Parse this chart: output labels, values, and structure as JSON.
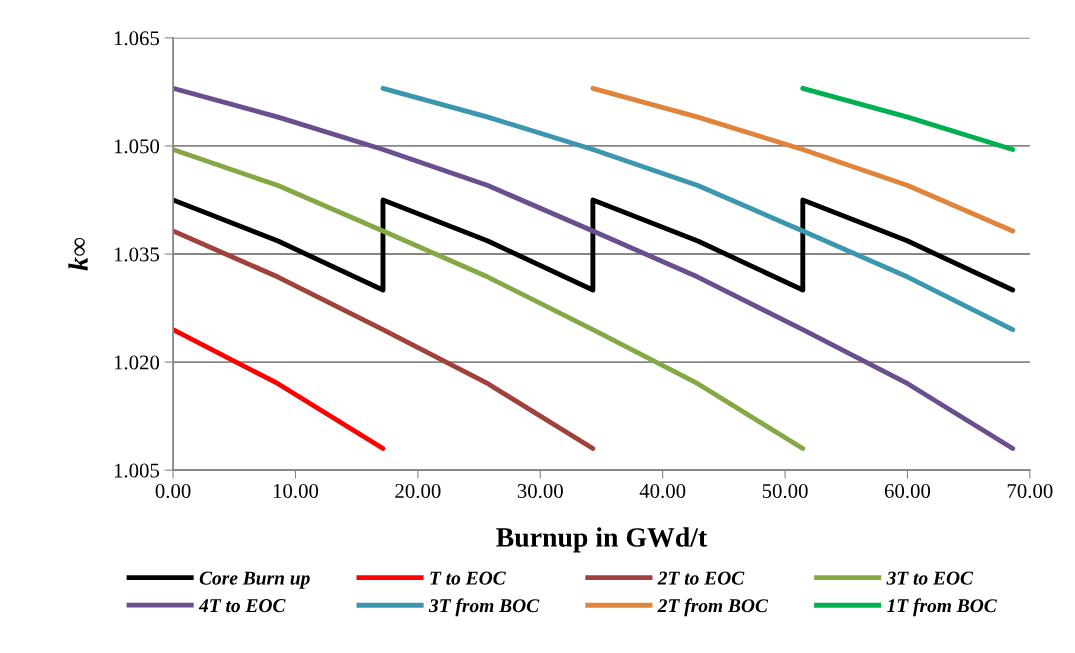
{
  "chart_data": {
    "type": "line",
    "xlabel": "Burnup in GWd/t",
    "ylabel": "k∞",
    "xlim": [
      0,
      70
    ],
    "ylim": [
      1.005,
      1.065
    ],
    "xticks": [
      {
        "value": 0,
        "label": "0.00"
      },
      {
        "value": 10,
        "label": "10.00"
      },
      {
        "value": 20,
        "label": "20.00"
      },
      {
        "value": 30,
        "label": "30.00"
      },
      {
        "value": 40,
        "label": "40.00"
      },
      {
        "value": 50,
        "label": "50.00"
      },
      {
        "value": 60,
        "label": "60.00"
      },
      {
        "value": 70,
        "label": "70.00"
      }
    ],
    "yticks": [
      {
        "value": 1.005,
        "label": "1.005"
      },
      {
        "value": 1.02,
        "label": "1.020"
      },
      {
        "value": 1.035,
        "label": "1.035"
      },
      {
        "value": 1.05,
        "label": "1.050"
      },
      {
        "value": 1.065,
        "label": "1.065"
      }
    ],
    "grid": "y",
    "legend": "bottom",
    "marker": "none",
    "line_style": "solid",
    "series": [
      {
        "name": "Core Burn up",
        "color": "#000000",
        "x": [
          0,
          8.575,
          17.15,
          17.15,
          25.725,
          34.3,
          34.3,
          42.875,
          51.45,
          51.45,
          60.025,
          68.6
        ],
        "values": [
          1.0425,
          1.0368,
          1.03,
          1.0425,
          1.0368,
          1.03,
          1.0425,
          1.0368,
          1.03,
          1.0425,
          1.0368,
          1.03
        ]
      },
      {
        "name": "T to EOC",
        "color": "#ff0000",
        "x": [
          0,
          8.575,
          17.15
        ],
        "values": [
          1.0245,
          1.017,
          1.008
        ]
      },
      {
        "name": "2T to EOC",
        "color": "#a0413c",
        "x": [
          0,
          8.575,
          17.15,
          25.725,
          34.3
        ],
        "values": [
          1.0382,
          1.0318,
          1.0245,
          1.017,
          1.008
        ]
      },
      {
        "name": "3T to EOC",
        "color": "#86a844",
        "x": [
          0,
          8.575,
          17.15,
          25.725,
          34.3,
          42.875,
          51.45
        ],
        "values": [
          1.0495,
          1.0445,
          1.0382,
          1.0318,
          1.0245,
          1.017,
          1.008
        ]
      },
      {
        "name": "4T to EOC",
        "color": "#6a4f8e",
        "x": [
          0,
          8.575,
          17.15,
          25.725,
          34.3,
          42.875,
          51.45,
          60.025,
          68.6
        ],
        "values": [
          1.058,
          1.054,
          1.0495,
          1.0445,
          1.0382,
          1.0318,
          1.0245,
          1.017,
          1.008
        ]
      },
      {
        "name": "3T from BOC",
        "color": "#3b96b0",
        "x": [
          17.15,
          25.725,
          34.3,
          42.875,
          51.45,
          60.025,
          68.6
        ],
        "values": [
          1.058,
          1.054,
          1.0495,
          1.0445,
          1.0382,
          1.0318,
          1.0245
        ]
      },
      {
        "name": "2T from BOC",
        "color": "#e0843c",
        "x": [
          34.3,
          42.875,
          51.45,
          60.025,
          68.6
        ],
        "values": [
          1.058,
          1.054,
          1.0495,
          1.0445,
          1.0382
        ]
      },
      {
        "name": "1T from BOC",
        "color": "#00b050",
        "x": [
          51.45,
          60.025,
          68.6
        ],
        "values": [
          1.058,
          1.054,
          1.0495
        ]
      }
    ]
  }
}
